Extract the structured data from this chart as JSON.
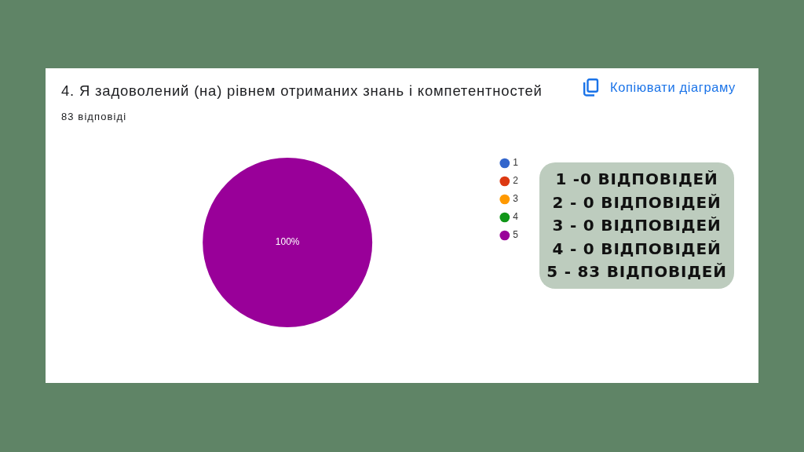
{
  "chart_data": {
    "type": "pie",
    "title": "4. Я задоволений (на) рівнем отриманих знань і компетентностей",
    "subtitle": "83 відповіді",
    "categories": [
      "1",
      "2",
      "3",
      "4",
      "5"
    ],
    "values": [
      0,
      0,
      0,
      0,
      100
    ],
    "colors": [
      "#3366cc",
      "#dc3912",
      "#ff9900",
      "#109618",
      "#990099"
    ],
    "value_labels": [
      null,
      null,
      null,
      null,
      "100%"
    ],
    "legend": "top right",
    "annotations": [
      "Копіювати діаграму",
      "1 -0 ВІДПОВІДЕЙ",
      "2 - 0 ВІДПОВІДЕЙ",
      "3 - 0 ВІДПОВІДЕЙ",
      "4 - 0 ВІДПОВІДЕЙ",
      "5 - 83 ВІДПОВІДЕЙ"
    ]
  }
}
